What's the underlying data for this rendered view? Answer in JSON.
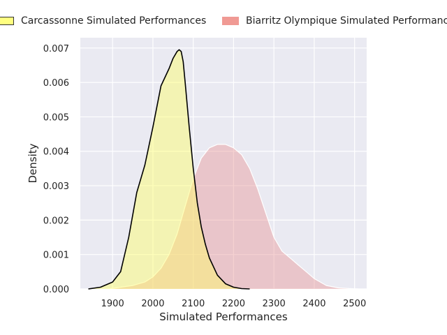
{
  "chart_data": {
    "type": "area",
    "title": "",
    "xlabel": "Simulated Performances",
    "ylabel": "Density",
    "xlim": [
      1820,
      2530
    ],
    "ylim": [
      0,
      0.0073
    ],
    "x_ticks": [
      "1900",
      "2000",
      "2100",
      "2200",
      "2300",
      "2400",
      "2500"
    ],
    "y_ticks": [
      "0.000",
      "0.001",
      "0.002",
      "0.003",
      "0.004",
      "0.005",
      "0.006",
      "0.007"
    ],
    "grid": true,
    "legend_position": "top (above plot)",
    "series": [
      {
        "name": "Carcassonne Simulated Performances",
        "fill": "#ffff66",
        "line": "#000000",
        "x": [
          1840,
          1870,
          1900,
          1920,
          1940,
          1960,
          1980,
          2000,
          2020,
          2040,
          2050,
          2060,
          2065,
          2070,
          2075,
          2080,
          2090,
          2100,
          2110,
          2120,
          2130,
          2140,
          2160,
          2180,
          2200,
          2220,
          2240
        ],
        "y": [
          0.0,
          5e-05,
          0.0002,
          0.0005,
          0.0015,
          0.0028,
          0.0036,
          0.0047,
          0.0059,
          0.0064,
          0.0067,
          0.0069,
          0.00695,
          0.0069,
          0.0066,
          0.006,
          0.0047,
          0.0035,
          0.0025,
          0.0018,
          0.0013,
          0.0009,
          0.0004,
          0.00015,
          5e-05,
          1e-05,
          0.0
        ]
      },
      {
        "name": "Biarritz Olympique Simulated Performances",
        "fill": "#e89a9a",
        "line": "#ffffff",
        "x": [
          1890,
          1920,
          1950,
          1980,
          2000,
          2020,
          2040,
          2060,
          2080,
          2100,
          2120,
          2140,
          2160,
          2180,
          2200,
          2220,
          2240,
          2260,
          2280,
          2300,
          2320,
          2340,
          2360,
          2380,
          2400,
          2430,
          2460,
          2490,
          2510
        ],
        "y": [
          0.0,
          5e-05,
          0.0001,
          0.0002,
          0.00035,
          0.0006,
          0.001,
          0.0016,
          0.0024,
          0.0032,
          0.0038,
          0.0041,
          0.0042,
          0.0042,
          0.0041,
          0.0039,
          0.0035,
          0.0029,
          0.0022,
          0.0015,
          0.0011,
          0.0009,
          0.0007,
          0.0005,
          0.0003,
          0.0001,
          3e-05,
          1e-05,
          0.0
        ]
      }
    ]
  }
}
